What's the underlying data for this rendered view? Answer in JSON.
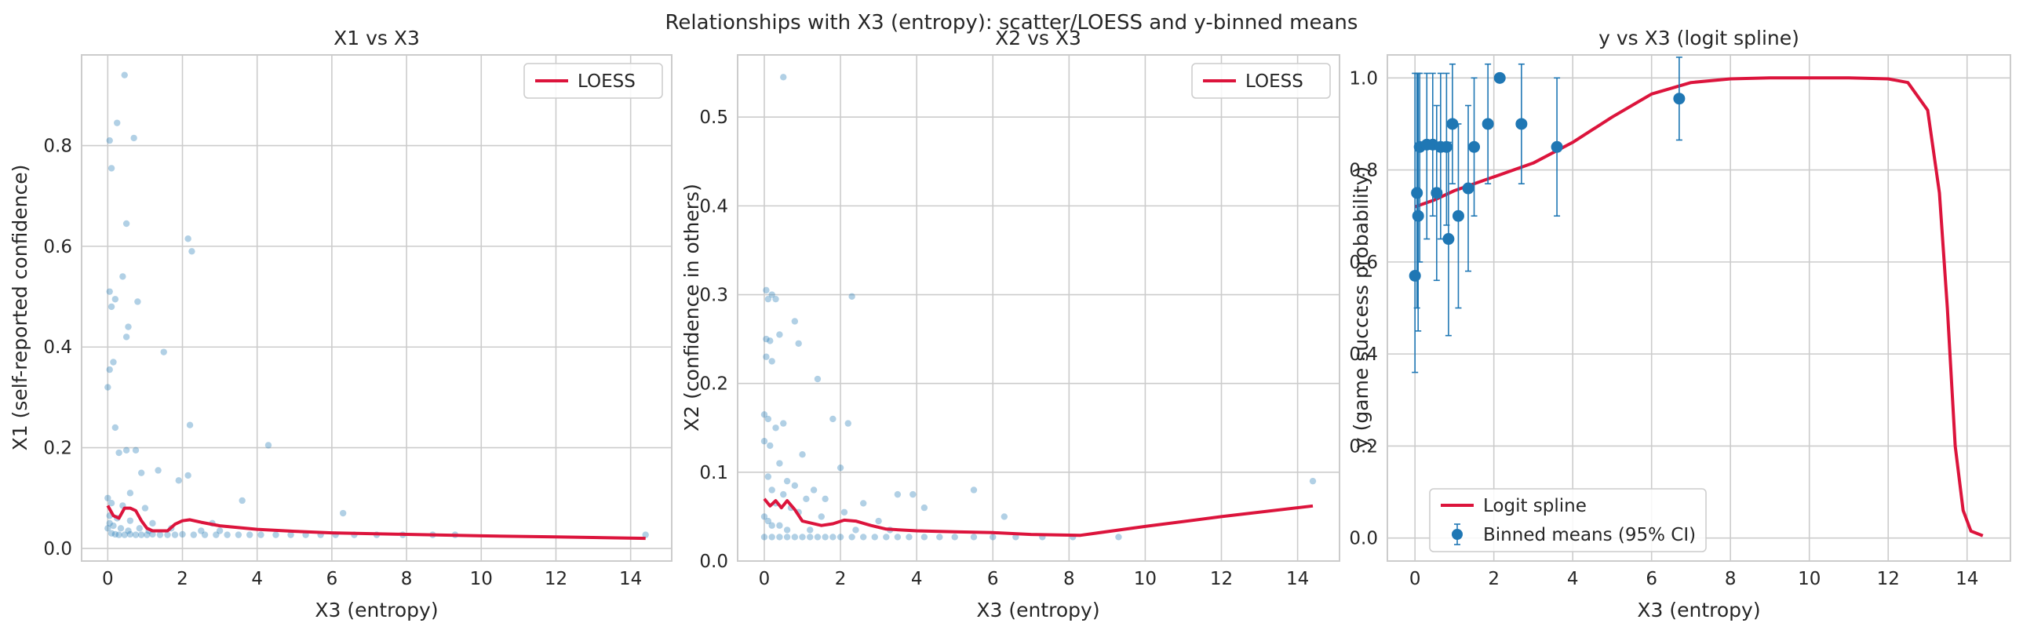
{
  "figure": {
    "suptitle": "Relationships with X3 (entropy): scatter/LOESS and y-binned means"
  },
  "colors": {
    "scatter": "#1f77b4",
    "curve": "#dc143c",
    "grid": "#cccccc",
    "text": "#262626"
  },
  "chart_data": [
    {
      "type": "scatter",
      "title": "X1 vs X3",
      "xlabel": "X3 (entropy)",
      "ylabel": "X1 (self-reported confidence)",
      "xlim": [
        -0.7,
        15.1
      ],
      "ylim": [
        -0.025,
        0.98
      ],
      "xticks": [
        0,
        2,
        4,
        6,
        8,
        10,
        12,
        14
      ],
      "yticks": [
        0.0,
        0.2,
        0.4,
        0.6,
        0.8
      ],
      "ytick_labels": [
        "0.0",
        "0.2",
        "0.4",
        "0.6",
        "0.8"
      ],
      "grid": true,
      "legend_position": "upper-right",
      "legend": [
        {
          "label": "LOESS",
          "kind": "line"
        }
      ],
      "points": [
        [
          0.45,
          0.94
        ],
        [
          0.25,
          0.845
        ],
        [
          0.05,
          0.81
        ],
        [
          0.7,
          0.815
        ],
        [
          0.1,
          0.755
        ],
        [
          0.5,
          0.645
        ],
        [
          2.15,
          0.615
        ],
        [
          2.25,
          0.59
        ],
        [
          0.4,
          0.54
        ],
        [
          0.2,
          0.495
        ],
        [
          0.8,
          0.49
        ],
        [
          0.05,
          0.51
        ],
        [
          0.1,
          0.48
        ],
        [
          0.55,
          0.44
        ],
        [
          0.5,
          0.42
        ],
        [
          1.5,
          0.39
        ],
        [
          0.15,
          0.37
        ],
        [
          0.05,
          0.355
        ],
        [
          0.0,
          0.32
        ],
        [
          0.2,
          0.24
        ],
        [
          2.2,
          0.245
        ],
        [
          4.3,
          0.205
        ],
        [
          0.5,
          0.195
        ],
        [
          0.75,
          0.195
        ],
        [
          0.3,
          0.19
        ],
        [
          1.35,
          0.155
        ],
        [
          0.9,
          0.15
        ],
        [
          2.15,
          0.145
        ],
        [
          0.6,
          0.11
        ],
        [
          1.9,
          0.135
        ],
        [
          0.0,
          0.1
        ],
        [
          0.1,
          0.09
        ],
        [
          3.6,
          0.095
        ],
        [
          0.4,
          0.085
        ],
        [
          1.0,
          0.08
        ],
        [
          6.3,
          0.07
        ],
        [
          2.8,
          0.05
        ],
        [
          0.05,
          0.05
        ],
        [
          0.6,
          0.055
        ],
        [
          1.2,
          0.05
        ],
        [
          0.1,
          0.03
        ],
        [
          0.2,
          0.028
        ],
        [
          0.3,
          0.027
        ],
        [
          0.45,
          0.027
        ],
        [
          0.6,
          0.028
        ],
        [
          0.75,
          0.027
        ],
        [
          0.9,
          0.027
        ],
        [
          1.05,
          0.027
        ],
        [
          1.2,
          0.028
        ],
        [
          1.4,
          0.027
        ],
        [
          1.6,
          0.027
        ],
        [
          1.8,
          0.027
        ],
        [
          2.0,
          0.028
        ],
        [
          2.3,
          0.027
        ],
        [
          2.6,
          0.027
        ],
        [
          2.9,
          0.027
        ],
        [
          3.2,
          0.027
        ],
        [
          3.5,
          0.027
        ],
        [
          3.8,
          0.027
        ],
        [
          4.1,
          0.027
        ],
        [
          4.5,
          0.027
        ],
        [
          4.9,
          0.027
        ],
        [
          5.3,
          0.027
        ],
        [
          5.7,
          0.027
        ],
        [
          6.1,
          0.027
        ],
        [
          6.6,
          0.027
        ],
        [
          7.2,
          0.027
        ],
        [
          7.9,
          0.027
        ],
        [
          8.7,
          0.027
        ],
        [
          9.3,
          0.027
        ],
        [
          14.4,
          0.027
        ],
        [
          0.0,
          0.04
        ],
        [
          0.15,
          0.045
        ],
        [
          0.35,
          0.04
        ],
        [
          0.55,
          0.035
        ],
        [
          0.85,
          0.04
        ],
        [
          1.1,
          0.035
        ],
        [
          1.7,
          0.04
        ],
        [
          2.5,
          0.035
        ],
        [
          3.0,
          0.035
        ],
        [
          0.05,
          0.065
        ],
        [
          0.25,
          0.06
        ]
      ],
      "loess": {
        "x": [
          0.0,
          0.15,
          0.3,
          0.45,
          0.6,
          0.75,
          0.9,
          1.05,
          1.2,
          1.4,
          1.6,
          1.8,
          2.0,
          2.2,
          2.5,
          3.0,
          4.0,
          5.0,
          6.0,
          8.0,
          10.0,
          12.0,
          14.4
        ],
        "y": [
          0.085,
          0.065,
          0.06,
          0.08,
          0.08,
          0.075,
          0.055,
          0.04,
          0.035,
          0.035,
          0.035,
          0.048,
          0.055,
          0.057,
          0.052,
          0.045,
          0.038,
          0.034,
          0.031,
          0.028,
          0.025,
          0.023,
          0.02
        ]
      }
    },
    {
      "type": "scatter",
      "title": "X2 vs X3",
      "xlabel": "X3 (entropy)",
      "ylabel": "X2 (confidence in others)",
      "xlim": [
        -0.7,
        15.1
      ],
      "ylim": [
        0.0,
        0.57
      ],
      "xticks": [
        0,
        2,
        4,
        6,
        8,
        10,
        12,
        14
      ],
      "yticks": [
        0.0,
        0.1,
        0.2,
        0.3,
        0.4,
        0.5
      ],
      "ytick_labels": [
        "0.0",
        "0.1",
        "0.2",
        "0.3",
        "0.4",
        "0.5"
      ],
      "grid": true,
      "legend_position": "upper-right",
      "legend": [
        {
          "label": "LOESS",
          "kind": "line"
        }
      ],
      "points": [
        [
          0.5,
          0.545
        ],
        [
          0.05,
          0.305
        ],
        [
          0.1,
          0.295
        ],
        [
          0.2,
          0.3
        ],
        [
          0.3,
          0.295
        ],
        [
          2.3,
          0.298
        ],
        [
          0.8,
          0.27
        ],
        [
          0.4,
          0.255
        ],
        [
          0.05,
          0.25
        ],
        [
          0.15,
          0.248
        ],
        [
          0.9,
          0.245
        ],
        [
          0.05,
          0.23
        ],
        [
          0.2,
          0.225
        ],
        [
          1.4,
          0.205
        ],
        [
          0.0,
          0.165
        ],
        [
          0.1,
          0.16
        ],
        [
          1.8,
          0.16
        ],
        [
          2.2,
          0.155
        ],
        [
          0.5,
          0.155
        ],
        [
          0.3,
          0.15
        ],
        [
          0.0,
          0.135
        ],
        [
          0.15,
          0.13
        ],
        [
          1.0,
          0.12
        ],
        [
          0.4,
          0.11
        ],
        [
          2.0,
          0.105
        ],
        [
          0.1,
          0.095
        ],
        [
          0.6,
          0.09
        ],
        [
          0.8,
          0.085
        ],
        [
          1.3,
          0.08
        ],
        [
          3.5,
          0.075
        ],
        [
          3.9,
          0.075
        ],
        [
          5.5,
          0.08
        ],
        [
          0.2,
          0.08
        ],
        [
          0.5,
          0.075
        ],
        [
          1.1,
          0.07
        ],
        [
          1.6,
          0.07
        ],
        [
          2.6,
          0.065
        ],
        [
          4.2,
          0.06
        ],
        [
          6.3,
          0.05
        ],
        [
          14.4,
          0.09
        ],
        [
          0.3,
          0.065
        ],
        [
          0.7,
          0.06
        ],
        [
          0.9,
          0.055
        ],
        [
          1.5,
          0.05
        ],
        [
          2.1,
          0.055
        ],
        [
          3.0,
          0.045
        ],
        [
          0.0,
          0.05
        ],
        [
          0.1,
          0.045
        ],
        [
          0.2,
          0.04
        ],
        [
          0.4,
          0.04
        ],
        [
          0.6,
          0.035
        ],
        [
          1.2,
          0.035
        ],
        [
          2.4,
          0.035
        ],
        [
          3.3,
          0.035
        ],
        [
          0.0,
          0.027
        ],
        [
          0.2,
          0.027
        ],
        [
          0.4,
          0.027
        ],
        [
          0.6,
          0.027
        ],
        [
          0.8,
          0.027
        ],
        [
          1.0,
          0.027
        ],
        [
          1.2,
          0.027
        ],
        [
          1.4,
          0.027
        ],
        [
          1.6,
          0.027
        ],
        [
          1.8,
          0.027
        ],
        [
          2.0,
          0.027
        ],
        [
          2.3,
          0.027
        ],
        [
          2.6,
          0.027
        ],
        [
          2.9,
          0.027
        ],
        [
          3.2,
          0.027
        ],
        [
          3.5,
          0.027
        ],
        [
          3.8,
          0.027
        ],
        [
          4.2,
          0.027
        ],
        [
          4.6,
          0.027
        ],
        [
          5.0,
          0.027
        ],
        [
          5.5,
          0.027
        ],
        [
          6.0,
          0.027
        ],
        [
          6.6,
          0.027
        ],
        [
          7.3,
          0.027
        ],
        [
          8.1,
          0.027
        ],
        [
          9.3,
          0.027
        ]
      ],
      "loess": {
        "x": [
          0.0,
          0.15,
          0.3,
          0.45,
          0.6,
          0.8,
          1.0,
          1.2,
          1.5,
          1.8,
          2.1,
          2.4,
          2.8,
          3.2,
          4.0,
          5.0,
          6.0,
          7.0,
          8.3,
          10.0,
          12.0,
          14.4
        ],
        "y": [
          0.07,
          0.062,
          0.068,
          0.06,
          0.068,
          0.058,
          0.045,
          0.043,
          0.04,
          0.042,
          0.046,
          0.045,
          0.04,
          0.036,
          0.034,
          0.033,
          0.032,
          0.03,
          0.029,
          0.039,
          0.05,
          0.062
        ]
      }
    },
    {
      "type": "line",
      "title": "y vs X3 (logit spline)",
      "xlabel": "X3 (entropy)",
      "ylabel": "y (game success probability)",
      "xlim": [
        -0.7,
        15.1
      ],
      "ylim": [
        -0.05,
        1.05
      ],
      "xticks": [
        0,
        2,
        4,
        6,
        8,
        10,
        12,
        14
      ],
      "yticks": [
        0.0,
        0.2,
        0.4,
        0.6,
        0.8,
        1.0
      ],
      "ytick_labels": [
        "0.0",
        "0.2",
        "0.4",
        "0.6",
        "0.8",
        "1.0"
      ],
      "grid": true,
      "legend_position": "lower-left",
      "legend": [
        {
          "label": "Logit spline",
          "kind": "line"
        },
        {
          "label": "Binned means (95% CI)",
          "kind": "errorbar"
        }
      ],
      "spline": {
        "x": [
          0.0,
          0.5,
          1.0,
          2.0,
          3.0,
          4.0,
          5.0,
          6.0,
          7.0,
          8.0,
          9.0,
          10.0,
          11.0,
          12.0,
          12.5,
          13.0,
          13.3,
          13.5,
          13.7,
          13.9,
          14.1,
          14.4
        ],
        "y": [
          0.72,
          0.735,
          0.755,
          0.785,
          0.815,
          0.86,
          0.915,
          0.965,
          0.99,
          0.998,
          1.0,
          1.0,
          1.0,
          0.998,
          0.99,
          0.93,
          0.75,
          0.5,
          0.2,
          0.06,
          0.015,
          0.005
        ]
      },
      "binned_means": [
        {
          "x": 0.0,
          "y": 0.57,
          "lo": 0.36,
          "hi": 1.01
        },
        {
          "x": 0.05,
          "y": 0.75,
          "lo": 0.5,
          "hi": 1.01
        },
        {
          "x": 0.08,
          "y": 0.7,
          "lo": 0.45,
          "hi": 1.01
        },
        {
          "x": 0.12,
          "y": 0.85,
          "lo": 0.6,
          "hi": 1.01
        },
        {
          "x": 0.3,
          "y": 0.855,
          "lo": 0.65,
          "hi": 1.01
        },
        {
          "x": 0.45,
          "y": 0.855,
          "lo": 0.7,
          "hi": 1.01
        },
        {
          "x": 0.55,
          "y": 0.75,
          "lo": 0.56,
          "hi": 0.94
        },
        {
          "x": 0.65,
          "y": 0.85,
          "lo": 0.65,
          "hi": 1.01
        },
        {
          "x": 0.8,
          "y": 0.85,
          "lo": 0.68,
          "hi": 1.01
        },
        {
          "x": 0.85,
          "y": 0.65,
          "lo": 0.44,
          "hi": 0.86
        },
        {
          "x": 0.95,
          "y": 0.9,
          "lo": 0.77,
          "hi": 1.03
        },
        {
          "x": 1.1,
          "y": 0.7,
          "lo": 0.5,
          "hi": 0.9
        },
        {
          "x": 1.35,
          "y": 0.76,
          "lo": 0.58,
          "hi": 0.94
        },
        {
          "x": 1.5,
          "y": 0.85,
          "lo": 0.7,
          "hi": 1.0
        },
        {
          "x": 1.85,
          "y": 0.9,
          "lo": 0.77,
          "hi": 1.03
        },
        {
          "x": 2.15,
          "y": 1.0,
          "lo": 1.0,
          "hi": 1.0
        },
        {
          "x": 2.7,
          "y": 0.9,
          "lo": 0.77,
          "hi": 1.03
        },
        {
          "x": 3.6,
          "y": 0.85,
          "lo": 0.7,
          "hi": 1.0
        },
        {
          "x": 6.7,
          "y": 0.955,
          "lo": 0.865,
          "hi": 1.045
        }
      ]
    }
  ]
}
